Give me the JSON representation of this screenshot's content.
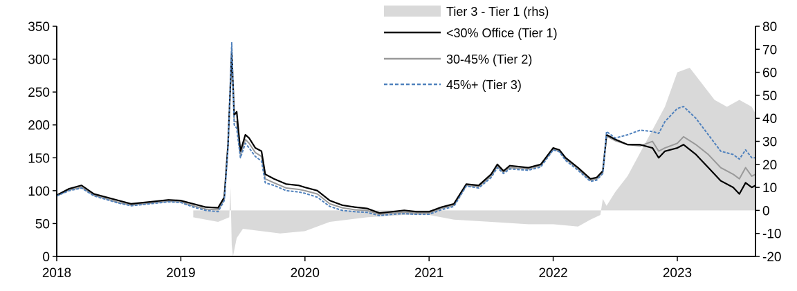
{
  "chart_data": {
    "type": "line",
    "title": "",
    "xlabel": "",
    "ylabel": "",
    "x_ticks": [
      "2018",
      "2019",
      "2020",
      "2021",
      "2022",
      "2023"
    ],
    "x_range": [
      2018.0,
      2023.63
    ],
    "left_axis": {
      "ylim": [
        0,
        350
      ],
      "ticks": [
        "0",
        "50",
        "100",
        "150",
        "200",
        "250",
        "300",
        "350"
      ]
    },
    "right_axis": {
      "ylim": [
        -20,
        80
      ],
      "ticks": [
        "-20",
        "-10",
        "0",
        "10",
        "20",
        "30",
        "40",
        "50",
        "60",
        "70",
        "80"
      ]
    },
    "legend_position": "top-center",
    "x": [
      2018.0,
      2018.1,
      2018.2,
      2018.3,
      2018.5,
      2018.6,
      2018.75,
      2018.9,
      2019.0,
      2019.1,
      2019.2,
      2019.3,
      2019.35,
      2019.38,
      2019.41,
      2019.43,
      2019.45,
      2019.48,
      2019.52,
      2019.55,
      2019.6,
      2019.65,
      2019.68,
      2019.75,
      2019.85,
      2019.95,
      2020.0,
      2020.1,
      2020.2,
      2020.3,
      2020.4,
      2020.5,
      2020.6,
      2020.7,
      2020.8,
      2020.9,
      2021.0,
      2021.1,
      2021.2,
      2021.3,
      2021.4,
      2021.5,
      2021.55,
      2021.6,
      2021.65,
      2021.8,
      2021.9,
      2022.0,
      2022.05,
      2022.1,
      2022.2,
      2022.3,
      2022.35,
      2022.4,
      2022.43,
      2022.5,
      2022.6,
      2022.7,
      2022.8,
      2022.85,
      2022.9,
      2023.0,
      2023.05,
      2023.15,
      2023.25,
      2023.35,
      2023.45,
      2023.5,
      2023.55,
      2023.6,
      2023.63
    ],
    "series": [
      {
        "name": "<30% Office (Tier 1)",
        "axis": "left",
        "color": "#000000",
        "style": "solid",
        "values": [
          93,
          103,
          108,
          95,
          85,
          80,
          83,
          86,
          85,
          80,
          75,
          74,
          90,
          170,
          310,
          215,
          220,
          160,
          185,
          180,
          165,
          160,
          125,
          118,
          110,
          108,
          105,
          100,
          85,
          78,
          75,
          73,
          66,
          68,
          70,
          68,
          68,
          75,
          80,
          110,
          108,
          125,
          140,
          130,
          138,
          135,
          140,
          165,
          162,
          150,
          135,
          118,
          120,
          130,
          185,
          178,
          170,
          170,
          165,
          150,
          160,
          165,
          170,
          155,
          135,
          115,
          105,
          95,
          112,
          105,
          108
        ]
      },
      {
        "name": "30-45% (Tier 2)",
        "axis": "left",
        "color": "#999999",
        "style": "solid",
        "values": [
          92,
          101,
          105,
          93,
          82,
          78,
          81,
          84,
          83,
          77,
          72,
          71,
          87,
          168,
          318,
          205,
          205,
          155,
          178,
          172,
          158,
          152,
          118,
          112,
          104,
          102,
          100,
          95,
          80,
          74,
          71,
          70,
          64,
          66,
          67,
          66,
          66,
          73,
          78,
          108,
          106,
          122,
          137,
          128,
          135,
          133,
          138,
          163,
          160,
          148,
          133,
          116,
          118,
          128,
          183,
          176,
          170,
          168,
          175,
          160,
          165,
          172,
          182,
          170,
          155,
          135,
          125,
          118,
          135,
          122,
          125
        ]
      },
      {
        "name": "45%+ (Tier 3)",
        "axis": "left",
        "color": "#4f81bd",
        "style": "dashed",
        "values": [
          92,
          100,
          104,
          92,
          81,
          77,
          80,
          83,
          82,
          75,
          70,
          68,
          85,
          165,
          325,
          200,
          195,
          150,
          172,
          165,
          152,
          145,
          112,
          108,
          100,
          98,
          96,
          90,
          76,
          70,
          68,
          67,
          62,
          64,
          65,
          64,
          64,
          71,
          76,
          107,
          104,
          120,
          135,
          126,
          133,
          131,
          136,
          162,
          159,
          146,
          131,
          114,
          116,
          126,
          190,
          180,
          185,
          192,
          190,
          187,
          205,
          225,
          228,
          210,
          185,
          160,
          155,
          148,
          162,
          150,
          150
        ]
      }
    ],
    "area": {
      "name": "Tier 3 - Tier 1 (rhs)",
      "axis": "right",
      "color": "#d9d9d9",
      "x": [
        2019.1,
        2019.3,
        2019.39,
        2019.4,
        2019.41,
        2019.42,
        2019.45,
        2019.5,
        2019.8,
        2020.0,
        2020.2,
        2020.5,
        2020.8,
        2021.0,
        2021.2,
        2021.5,
        2021.8,
        2022.0,
        2022.2,
        2022.3,
        2022.38,
        2022.4,
        2022.43,
        2022.5,
        2022.6,
        2022.7,
        2022.8,
        2022.9,
        2023.0,
        2023.1,
        2023.2,
        2023.3,
        2023.4,
        2023.5,
        2023.6,
        2023.63
      ],
      "values": [
        -3,
        -5,
        -3,
        10,
        -15,
        -20,
        -12,
        -8,
        -10,
        -9,
        -5,
        -3,
        -2,
        -2,
        -4,
        -5,
        -6,
        -6,
        -7,
        -4,
        -2,
        5,
        2,
        8,
        15,
        25,
        35,
        45,
        60,
        62,
        55,
        48,
        45,
        48,
        45,
        42
      ]
    }
  }
}
